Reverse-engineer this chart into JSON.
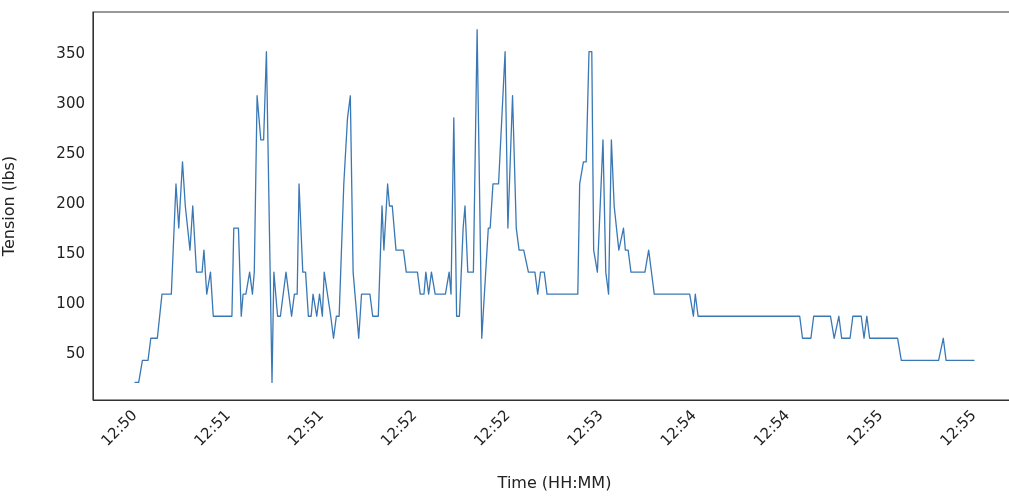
{
  "chart_data": {
    "type": "line",
    "xlabel": "Time (HH:MM)",
    "ylabel": "Tension (lbs)",
    "xlim": [
      12.8288,
      12.9278
    ],
    "ylim": [
      4.4,
      391.6
    ],
    "xticks": [
      {
        "value": 12.8333,
        "label": "12:50"
      },
      {
        "value": 12.8433,
        "label": "12:51"
      },
      {
        "value": 12.8533,
        "label": "12:51"
      },
      {
        "value": 12.8633,
        "label": "12:52"
      },
      {
        "value": 12.8733,
        "label": "12:52"
      },
      {
        "value": 12.8833,
        "label": "12:53"
      },
      {
        "value": 12.8933,
        "label": "12:54"
      },
      {
        "value": 12.9033,
        "label": "12:54"
      },
      {
        "value": 12.9133,
        "label": "12:55"
      },
      {
        "value": 12.9233,
        "label": "12:55"
      }
    ],
    "yticks": [
      50,
      100,
      150,
      200,
      250,
      300,
      350
    ],
    "grid": false,
    "legend": false,
    "marker": "none",
    "line_style": "solid",
    "series": [
      {
        "color": "#3a78b5",
        "x": [
          12.8333,
          12.8337,
          12.8341,
          12.8347,
          12.835,
          12.8357,
          12.8362,
          12.8372,
          12.8377,
          12.838,
          12.8384,
          12.8387,
          12.8392,
          12.8395,
          12.8399,
          12.8405,
          12.8407,
          12.841,
          12.8414,
          12.8417,
          12.8437,
          12.8439,
          12.8444,
          12.8447,
          12.8449,
          12.8452,
          12.8456,
          12.8459,
          12.8461,
          12.8464,
          12.8468,
          12.8471,
          12.8474,
          12.848,
          12.8482,
          12.8486,
          12.8489,
          12.8495,
          12.8501,
          12.8504,
          12.8507,
          12.8509,
          12.8513,
          12.8516,
          12.8519,
          12.8522,
          12.8524,
          12.8528,
          12.8531,
          12.8534,
          12.8536,
          12.8543,
          12.8546,
          12.8549,
          12.8552,
          12.8557,
          12.8561,
          12.8564,
          12.8567,
          12.8573,
          12.8576,
          12.8585,
          12.8588,
          12.8594,
          12.8598,
          12.86,
          12.8604,
          12.8606,
          12.8609,
          12.8613,
          12.8621,
          12.8624,
          12.8636,
          12.8639,
          12.8643,
          12.8645,
          12.8648,
          12.8651,
          12.8655,
          12.8666,
          12.867,
          12.8672,
          12.8675,
          12.8678,
          12.8681,
          12.8685,
          12.8687,
          12.869,
          12.8696,
          12.87,
          12.8705,
          12.8712,
          12.8714,
          12.8717,
          12.8723,
          12.873,
          12.8733,
          12.8738,
          12.8742,
          12.8745,
          12.875,
          12.8755,
          12.8762,
          12.8765,
          12.8768,
          12.8772,
          12.8775,
          12.8808,
          12.881,
          12.8814,
          12.8817,
          12.882,
          12.8823,
          12.8825,
          12.8829,
          12.8835,
          12.8838,
          12.8841,
          12.8844,
          12.8847,
          12.8852,
          12.8857,
          12.8859,
          12.8862,
          12.8865,
          12.888,
          12.8884,
          12.889,
          12.8928,
          12.8932,
          12.8934,
          12.8937,
          12.9046,
          12.9049,
          12.9058,
          12.9061,
          12.9079,
          12.9083,
          12.9088,
          12.9091,
          12.91,
          12.9103,
          12.9112,
          12.9115,
          12.9118,
          12.9121,
          12.9151,
          12.9155,
          12.9195,
          12.92,
          12.9203,
          12.9233
        ],
        "values": [
          22,
          22,
          44,
          44,
          66,
          66,
          110,
          110,
          220,
          176,
          242,
          198,
          154,
          198,
          132,
          132,
          154,
          110,
          132,
          88,
          88,
          176,
          176,
          88,
          110,
          110,
          132,
          110,
          132,
          308,
          264,
          264,
          352,
          22,
          132,
          88,
          88,
          132,
          88,
          110,
          110,
          220,
          132,
          132,
          88,
          88,
          110,
          88,
          110,
          88,
          132,
          88,
          66,
          88,
          88,
          220,
          286,
          308,
          132,
          66,
          110,
          110,
          88,
          88,
          198,
          154,
          220,
          198,
          198,
          154,
          154,
          132,
          132,
          110,
          110,
          132,
          110,
          132,
          110,
          110,
          132,
          110,
          286,
          88,
          88,
          176,
          198,
          132,
          132,
          374,
          66,
          176,
          176,
          220,
          220,
          352,
          176,
          308,
          176,
          154,
          154,
          132,
          132,
          110,
          132,
          132,
          110,
          110,
          220,
          242,
          242,
          352,
          352,
          154,
          132,
          264,
          132,
          110,
          264,
          198,
          154,
          176,
          154,
          154,
          132,
          132,
          154,
          110,
          110,
          88,
          110,
          88,
          88,
          66,
          66,
          88,
          88,
          66,
          88,
          66,
          66,
          88,
          88,
          66,
          88,
          66,
          66,
          44,
          44,
          66,
          44,
          44
        ]
      }
    ]
  }
}
